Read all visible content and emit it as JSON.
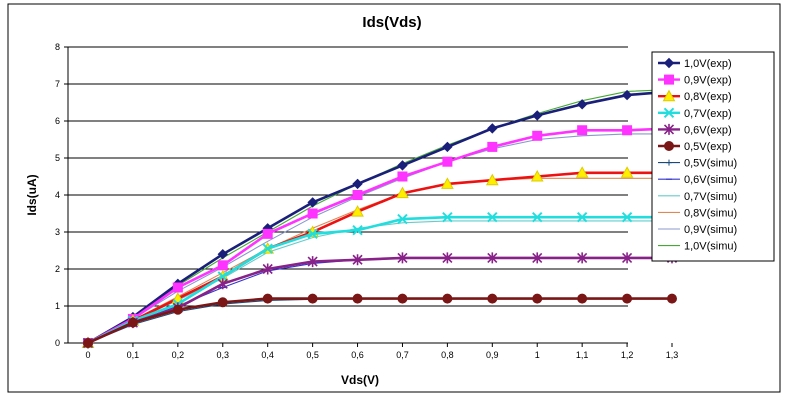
{
  "chart_data": {
    "type": "line",
    "title": "Ids(Vds)",
    "xlabel": "Vds(V)",
    "ylabel": "Ids(uA)",
    "x": [
      0,
      0.1,
      0.2,
      0.3,
      0.4,
      0.5,
      0.6,
      0.7,
      0.8,
      0.9,
      1.0,
      1.1,
      1.2,
      1.3
    ],
    "x_tick_labels": [
      "0",
      "0,1",
      "0,2",
      "0,3",
      "0,4",
      "0,5",
      "0,6",
      "0,7",
      "0,8",
      "0,9",
      "1",
      "1,1",
      "1,2",
      "1,3"
    ],
    "y_ticks": [
      "0",
      "1",
      "2",
      "3",
      "4",
      "5",
      "6",
      "7",
      "8"
    ],
    "xlim": [
      0,
      1.3
    ],
    "ylim": [
      0,
      8
    ],
    "grid": "horizontal",
    "legend_position": "right",
    "series": [
      {
        "name": "1,0V(exp)",
        "color": "#1a1f7a",
        "marker": "diamond",
        "values": [
          0,
          0.7,
          1.6,
          2.4,
          3.1,
          3.8,
          4.3,
          4.8,
          5.3,
          5.8,
          6.15,
          6.45,
          6.7,
          6.8
        ]
      },
      {
        "name": "0,9V(exp)",
        "color": "#ff33ff",
        "marker": "square",
        "values": [
          0,
          0.65,
          1.5,
          2.1,
          2.95,
          3.5,
          4.0,
          4.5,
          4.9,
          5.3,
          5.6,
          5.75,
          5.75,
          5.8
        ]
      },
      {
        "name": "0,8V(exp)",
        "color": "#ee1111",
        "marker": "triangle",
        "values": [
          0,
          0.6,
          1.2,
          1.8,
          2.55,
          3.0,
          3.55,
          4.05,
          4.3,
          4.4,
          4.5,
          4.6,
          4.6,
          4.6
        ]
      },
      {
        "name": "0,7V(exp)",
        "color": "#22dddd",
        "marker": "x",
        "values": [
          0,
          0.6,
          1.05,
          1.8,
          2.55,
          2.95,
          3.05,
          3.35,
          3.4,
          3.4,
          3.4,
          3.4,
          3.4,
          3.4
        ]
      },
      {
        "name": "0,6V(exp)",
        "color": "#882288",
        "marker": "star",
        "values": [
          0,
          0.55,
          0.95,
          1.6,
          2.0,
          2.2,
          2.25,
          2.3,
          2.3,
          2.3,
          2.3,
          2.3,
          2.3,
          2.3
        ]
      },
      {
        "name": "0,5V(exp)",
        "color": "#7a1616",
        "marker": "circle",
        "values": [
          0,
          0.55,
          0.9,
          1.1,
          1.2,
          1.2,
          1.2,
          1.2,
          1.2,
          1.2,
          1.2,
          1.2,
          1.2,
          1.2
        ]
      },
      {
        "name": "0,5V(simu)",
        "color": "#1a4a7a",
        "marker": "plus",
        "values": [
          0,
          0.5,
          0.85,
          1.05,
          1.15,
          1.18,
          1.2,
          1.2,
          1.2,
          1.2,
          1.2,
          1.2,
          1.2,
          1.2
        ]
      },
      {
        "name": "0,6V(simu)",
        "color": "#3333cc",
        "marker": "dash",
        "values": [
          0,
          0.55,
          1.0,
          1.5,
          1.95,
          2.15,
          2.25,
          2.28,
          2.3,
          2.3,
          2.3,
          2.3,
          2.3,
          2.3
        ]
      },
      {
        "name": "0,7V(simu)",
        "color": "#66cccc",
        "marker": "none",
        "values": [
          0,
          0.6,
          1.15,
          1.75,
          2.45,
          2.85,
          3.1,
          3.25,
          3.3,
          3.3,
          3.3,
          3.3,
          3.3,
          3.3
        ]
      },
      {
        "name": "0,8V(simu)",
        "color": "#dd8855",
        "marker": "none",
        "values": [
          0,
          0.62,
          1.25,
          1.9,
          2.55,
          3.1,
          3.6,
          4.05,
          4.3,
          4.4,
          4.45,
          4.45,
          4.45,
          4.45
        ]
      },
      {
        "name": "0,9V(simu)",
        "color": "#8899cc",
        "marker": "none",
        "values": [
          0,
          0.65,
          1.4,
          2.05,
          2.75,
          3.4,
          3.95,
          4.45,
          4.9,
          5.25,
          5.5,
          5.6,
          5.65,
          5.65
        ]
      },
      {
        "name": "1,0V(simu)",
        "color": "#44aa33",
        "marker": "none",
        "values": [
          0,
          0.7,
          1.55,
          2.3,
          3.0,
          3.7,
          4.3,
          4.85,
          5.35,
          5.8,
          6.2,
          6.55,
          6.8,
          6.85
        ]
      }
    ]
  }
}
